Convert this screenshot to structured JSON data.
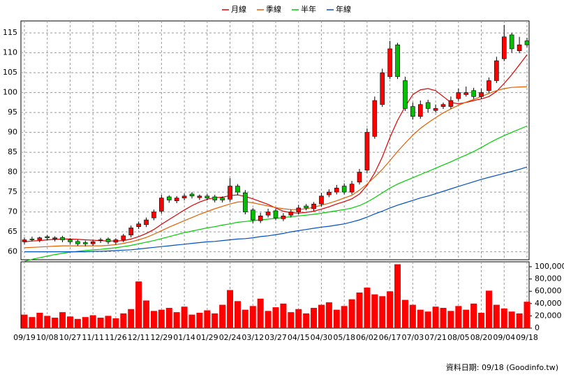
{
  "chart_data": {
    "type": "candlestick",
    "categories": [
      "09/19",
      null,
      null,
      "10/08",
      null,
      null,
      "10/27",
      null,
      null,
      "11/11",
      null,
      null,
      "11/26",
      null,
      null,
      "12/11",
      null,
      null,
      "12/29",
      null,
      null,
      "01/14",
      null,
      null,
      "01/29",
      null,
      null,
      "02/24",
      null,
      null,
      "03/12",
      null,
      null,
      "03/27",
      null,
      null,
      "04/15",
      null,
      null,
      "04/30",
      null,
      null,
      "05/18",
      null,
      null,
      "06/02",
      null,
      null,
      "06/17",
      null,
      null,
      "07/03",
      null,
      null,
      "07/21",
      null,
      null,
      "08/05",
      null,
      null,
      "08/20",
      null,
      null,
      "09/04",
      null,
      null,
      "09/18"
    ],
    "open": [
      62.5,
      63.2,
      63,
      63.8,
      63.2,
      63.6,
      63,
      62.6,
      62.3,
      62,
      62.8,
      63.2,
      62.4,
      63,
      64.2,
      66.3,
      66.8,
      68.5,
      70.2,
      73.8,
      72.8,
      73.5,
      74.5,
      73.6,
      74,
      73.8,
      73.5,
      73.2,
      76.5,
      74.8,
      70.5,
      67.8,
      69.2,
      70.3,
      68.3,
      69.2,
      70,
      71.5,
      70.8,
      72,
      74.3,
      75,
      76.5,
      75,
      77.5,
      80.5,
      89,
      97,
      104,
      112,
      103,
      96.5,
      94,
      97.5,
      95.5,
      96.5,
      96.5,
      98.5,
      99.5,
      100.5,
      99,
      100.5,
      103,
      108.5,
      114.5,
      110.5,
      113
    ],
    "high": [
      63.6,
      63.8,
      63.8,
      64.2,
      63.9,
      64,
      63.4,
      63,
      62.8,
      63,
      63.5,
      63.6,
      63.4,
      64.5,
      66.6,
      67.6,
      68.6,
      70.6,
      74.3,
      74.2,
      74,
      74.6,
      75,
      74.4,
      74.5,
      74.3,
      73.9,
      78.5,
      77,
      75.5,
      71,
      69.8,
      70.8,
      70.8,
      69.7,
      70.6,
      71.8,
      72,
      72.5,
      74.8,
      75.7,
      76.8,
      77.2,
      77.8,
      80.8,
      91,
      99,
      106,
      113,
      112.5,
      104,
      97.5,
      98,
      98.2,
      97,
      97.5,
      99,
      101,
      101.5,
      101.2,
      101,
      103.8,
      109,
      117,
      115,
      114,
      113.8
    ],
    "low": [
      61.9,
      62.6,
      62.4,
      62.9,
      62.6,
      62.4,
      61.9,
      61.5,
      61.4,
      61.5,
      62.2,
      61.9,
      61.8,
      62.4,
      63.6,
      65.7,
      66.2,
      67.9,
      69.6,
      72.3,
      72.2,
      72.9,
      73.4,
      73,
      72.9,
      72.4,
      72.4,
      72.6,
      74.2,
      69.4,
      67.2,
      67.2,
      68.6,
      67.9,
      67.7,
      68.6,
      69.4,
      70.4,
      70.2,
      71.4,
      73.7,
      74.4,
      74.4,
      74.4,
      76.9,
      79.8,
      88.4,
      96.4,
      103.4,
      103.4,
      95.4,
      93.2,
      93.4,
      95,
      95,
      95.9,
      95.9,
      97.9,
      99,
      98.4,
      98.4,
      99.9,
      102.4,
      107.9,
      110,
      109.9,
      111.4
    ],
    "close": [
      63,
      63,
      63.5,
      63.5,
      63.5,
      63,
      62.5,
      62,
      62,
      62.5,
      63,
      62.5,
      63,
      64,
      66,
      67,
      68,
      70,
      73.5,
      73,
      73.5,
      74,
      74,
      74,
      73.5,
      73,
      73,
      76.5,
      75,
      70,
      68,
      69,
      70,
      68.5,
      69,
      70,
      71,
      71,
      72,
      74,
      75,
      76,
      75,
      77,
      80,
      90,
      98,
      105,
      111,
      104,
      96,
      94,
      97,
      96,
      96,
      97,
      98,
      100,
      100,
      99,
      100,
      103,
      108,
      114,
      111,
      112,
      112
    ],
    "up_color": "#ff0000",
    "down_color": "#00c000",
    "series": [
      {
        "name": "月線",
        "color": "#dd0000",
        "values": [
          62.5,
          62.7,
          62.8,
          63,
          63.1,
          63.2,
          63.2,
          63.1,
          63,
          62.9,
          62.8,
          62.7,
          62.7,
          62.8,
          63.2,
          63.8,
          64.6,
          65.6,
          66.9,
          68.1,
          69.3,
          70.5,
          71.6,
          72.5,
          73.2,
          73.6,
          73.7,
          74.1,
          74.3,
          73.9,
          73.3,
          72.6,
          71.9,
          71,
          70.2,
          69.8,
          69.7,
          69.9,
          70.2,
          70.7,
          71.3,
          72,
          72.6,
          73.3,
          74.5,
          76.7,
          79.8,
          83.8,
          88.7,
          93,
          96.5,
          99.5,
          100.7,
          101,
          100.5,
          99,
          97.5,
          97.2,
          97.5,
          98,
          98.4,
          99,
          100.3,
          102.3,
          104.5,
          107,
          109.5
        ]
      },
      {
        "name": "季線",
        "color": "#e06000",
        "values": [
          61,
          61.1,
          61.2,
          61.3,
          61.4,
          61.5,
          61.5,
          61.5,
          61.5,
          61.5,
          61.5,
          61.6,
          61.8,
          62.1,
          62.5,
          63,
          63.6,
          64.4,
          65.3,
          66.2,
          67,
          67.8,
          68.6,
          69.4,
          70.1,
          70.8,
          71.4,
          72,
          72.5,
          72.6,
          72.3,
          71.9,
          71.5,
          71.1,
          70.8,
          70.6,
          70.6,
          70.8,
          71.2,
          71.7,
          72.2,
          72.8,
          73.5,
          74.2,
          75.5,
          77,
          78.8,
          80.7,
          82.9,
          85.2,
          87.3,
          89.3,
          91,
          92.4,
          93.7,
          94.9,
          95.9,
          96.8,
          97.6,
          98.3,
          99,
          99.8,
          100.5,
          101,
          101.3,
          101.4,
          101.5
        ]
      },
      {
        "name": "半年",
        "color": "#00cc00",
        "values": [
          57.6,
          58.1,
          58.5,
          58.9,
          59.3,
          59.6,
          59.9,
          60.1,
          60.3,
          60.5,
          60.6,
          60.8,
          61,
          61.3,
          61.6,
          62,
          62.4,
          62.8,
          63.3,
          63.8,
          64.3,
          64.8,
          65.2,
          65.6,
          66,
          66.3,
          66.7,
          67,
          67.4,
          67.6,
          67.8,
          68,
          68.2,
          68.4,
          68.6,
          68.8,
          69,
          69.2,
          69.4,
          69.7,
          70,
          70.3,
          70.6,
          71,
          71.6,
          72.5,
          73.6,
          74.8,
          76,
          77,
          77.8,
          78.6,
          79.4,
          80.2,
          81,
          81.8,
          82.6,
          83.5,
          84.3,
          85.2,
          86.2,
          87.3,
          88.3,
          89.2,
          90,
          90.8,
          91.6
        ]
      },
      {
        "name": "年線",
        "color": "#0050c0",
        "values": [
          60,
          60,
          60,
          60,
          60,
          60,
          60,
          60,
          60,
          60.1,
          60.1,
          60.2,
          60.3,
          60.4,
          60.5,
          60.7,
          60.9,
          61.1,
          61.3,
          61.5,
          61.7,
          61.9,
          62.1,
          62.3,
          62.5,
          62.6,
          62.8,
          63,
          63.2,
          63.3,
          63.5,
          63.8,
          64,
          64.3,
          64.6,
          65,
          65.3,
          65.6,
          65.9,
          66.2,
          66.4,
          66.7,
          67,
          67.5,
          68,
          68.7,
          69.5,
          70.2,
          71,
          71.7,
          72.3,
          72.9,
          73.5,
          74,
          74.6,
          75.2,
          75.8,
          76.4,
          77,
          77.6,
          78.2,
          78.7,
          79.2,
          79.7,
          80.2,
          80.7,
          81.3
        ]
      }
    ],
    "ylim": [
      58,
      118
    ],
    "yticks": [
      60,
      65,
      70,
      75,
      80,
      85,
      90,
      95,
      100,
      105,
      110,
      115
    ],
    "volume": {
      "color": "#ff0000",
      "values": [
        22000,
        18000,
        25000,
        20000,
        17000,
        26000,
        19000,
        15000,
        18000,
        21000,
        17000,
        20000,
        16000,
        24000,
        31000,
        76000,
        45000,
        28000,
        30000,
        33000,
        26000,
        35000,
        22000,
        25000,
        29000,
        24000,
        38000,
        62000,
        44000,
        30000,
        36000,
        48000,
        28000,
        34000,
        40000,
        26000,
        31000,
        24000,
        33000,
        38000,
        42000,
        30000,
        36000,
        47000,
        58000,
        66000,
        55000,
        52000,
        60000,
        104000,
        46000,
        38000,
        30000,
        27000,
        35000,
        33000,
        28000,
        36000,
        30000,
        40000,
        25000,
        61000,
        38000,
        32000,
        27000,
        24000,
        43000
      ],
      "ylim": [
        0,
        108000
      ],
      "yticks": [
        0,
        {
          "value": 20000,
          "label": "20,000"
        },
        {
          "value": 40000,
          "label": "40,000"
        },
        {
          "value": 60000,
          "label": "60,000"
        },
        {
          "value": 80000,
          "label": "80,000"
        },
        {
          "value": 100000,
          "label": "100,000"
        }
      ]
    },
    "grid": true,
    "footer": "資料日期: 09/18  (Goodinfo.tw)"
  }
}
